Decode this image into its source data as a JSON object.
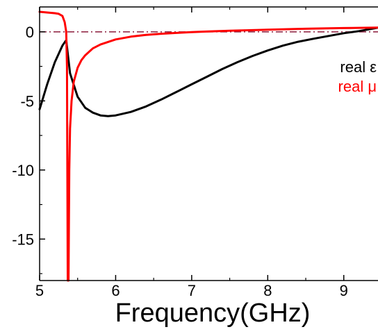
{
  "chart_data": {
    "type": "line",
    "title": "",
    "xlabel": "Frequency(GHz)",
    "ylabel": "",
    "xlim": [
      5.0,
      9.45
    ],
    "ylim": [
      -18.0,
      1.8
    ],
    "x_ticks": [
      5,
      6,
      7,
      8,
      9
    ],
    "y_ticks": [
      0,
      -5,
      -10,
      -15
    ],
    "x_tick_labels": [
      "5",
      "6",
      "7",
      "8",
      "9"
    ],
    "y_tick_labels": [
      "0",
      "-5",
      "-10",
      "-15"
    ],
    "legend_position": "right",
    "reference_line": {
      "y": 0,
      "style": "dash-dot",
      "color": "#8b1a3a"
    },
    "series": [
      {
        "name": "real ε",
        "color": "#000000",
        "x": [
          5.0,
          5.1,
          5.2,
          5.3,
          5.35,
          5.4,
          5.5,
          5.6,
          5.7,
          5.8,
          5.9,
          6.0,
          6.2,
          6.4,
          6.6,
          6.8,
          7.0,
          7.2,
          7.4,
          7.6,
          7.8,
          8.0,
          8.2,
          8.4,
          8.6,
          8.8,
          9.0,
          9.2,
          9.45
        ],
        "y": [
          -5.6,
          -3.8,
          -2.2,
          -1.0,
          -0.6,
          -3.0,
          -4.7,
          -5.5,
          -5.85,
          -6.05,
          -6.1,
          -6.05,
          -5.8,
          -5.4,
          -4.9,
          -4.35,
          -3.8,
          -3.25,
          -2.7,
          -2.2,
          -1.75,
          -1.35,
          -1.0,
          -0.72,
          -0.5,
          -0.3,
          -0.1,
          0.05,
          0.3
        ]
      },
      {
        "name": "real μ",
        "color": "#ff0000",
        "x": [
          5.0,
          5.1,
          5.2,
          5.25,
          5.3,
          5.33,
          5.35,
          5.36,
          5.37,
          5.38,
          5.39,
          5.4,
          5.42,
          5.45,
          5.5,
          5.55,
          5.6,
          5.7,
          5.8,
          6.0,
          6.2,
          6.4,
          6.6,
          6.8,
          7.0,
          7.2,
          7.5,
          8.0,
          8.5,
          9.0,
          9.45
        ],
        "y": [
          1.45,
          1.4,
          1.35,
          1.3,
          1.15,
          0.7,
          0.0,
          -2.5,
          -18.0,
          -18.0,
          -10.0,
          -7.0,
          -5.0,
          -3.6,
          -2.6,
          -2.05,
          -1.7,
          -1.2,
          -0.92,
          -0.55,
          -0.35,
          -0.22,
          -0.14,
          -0.08,
          -0.02,
          0.02,
          0.08,
          0.15,
          0.22,
          0.27,
          0.3
        ]
      }
    ]
  }
}
